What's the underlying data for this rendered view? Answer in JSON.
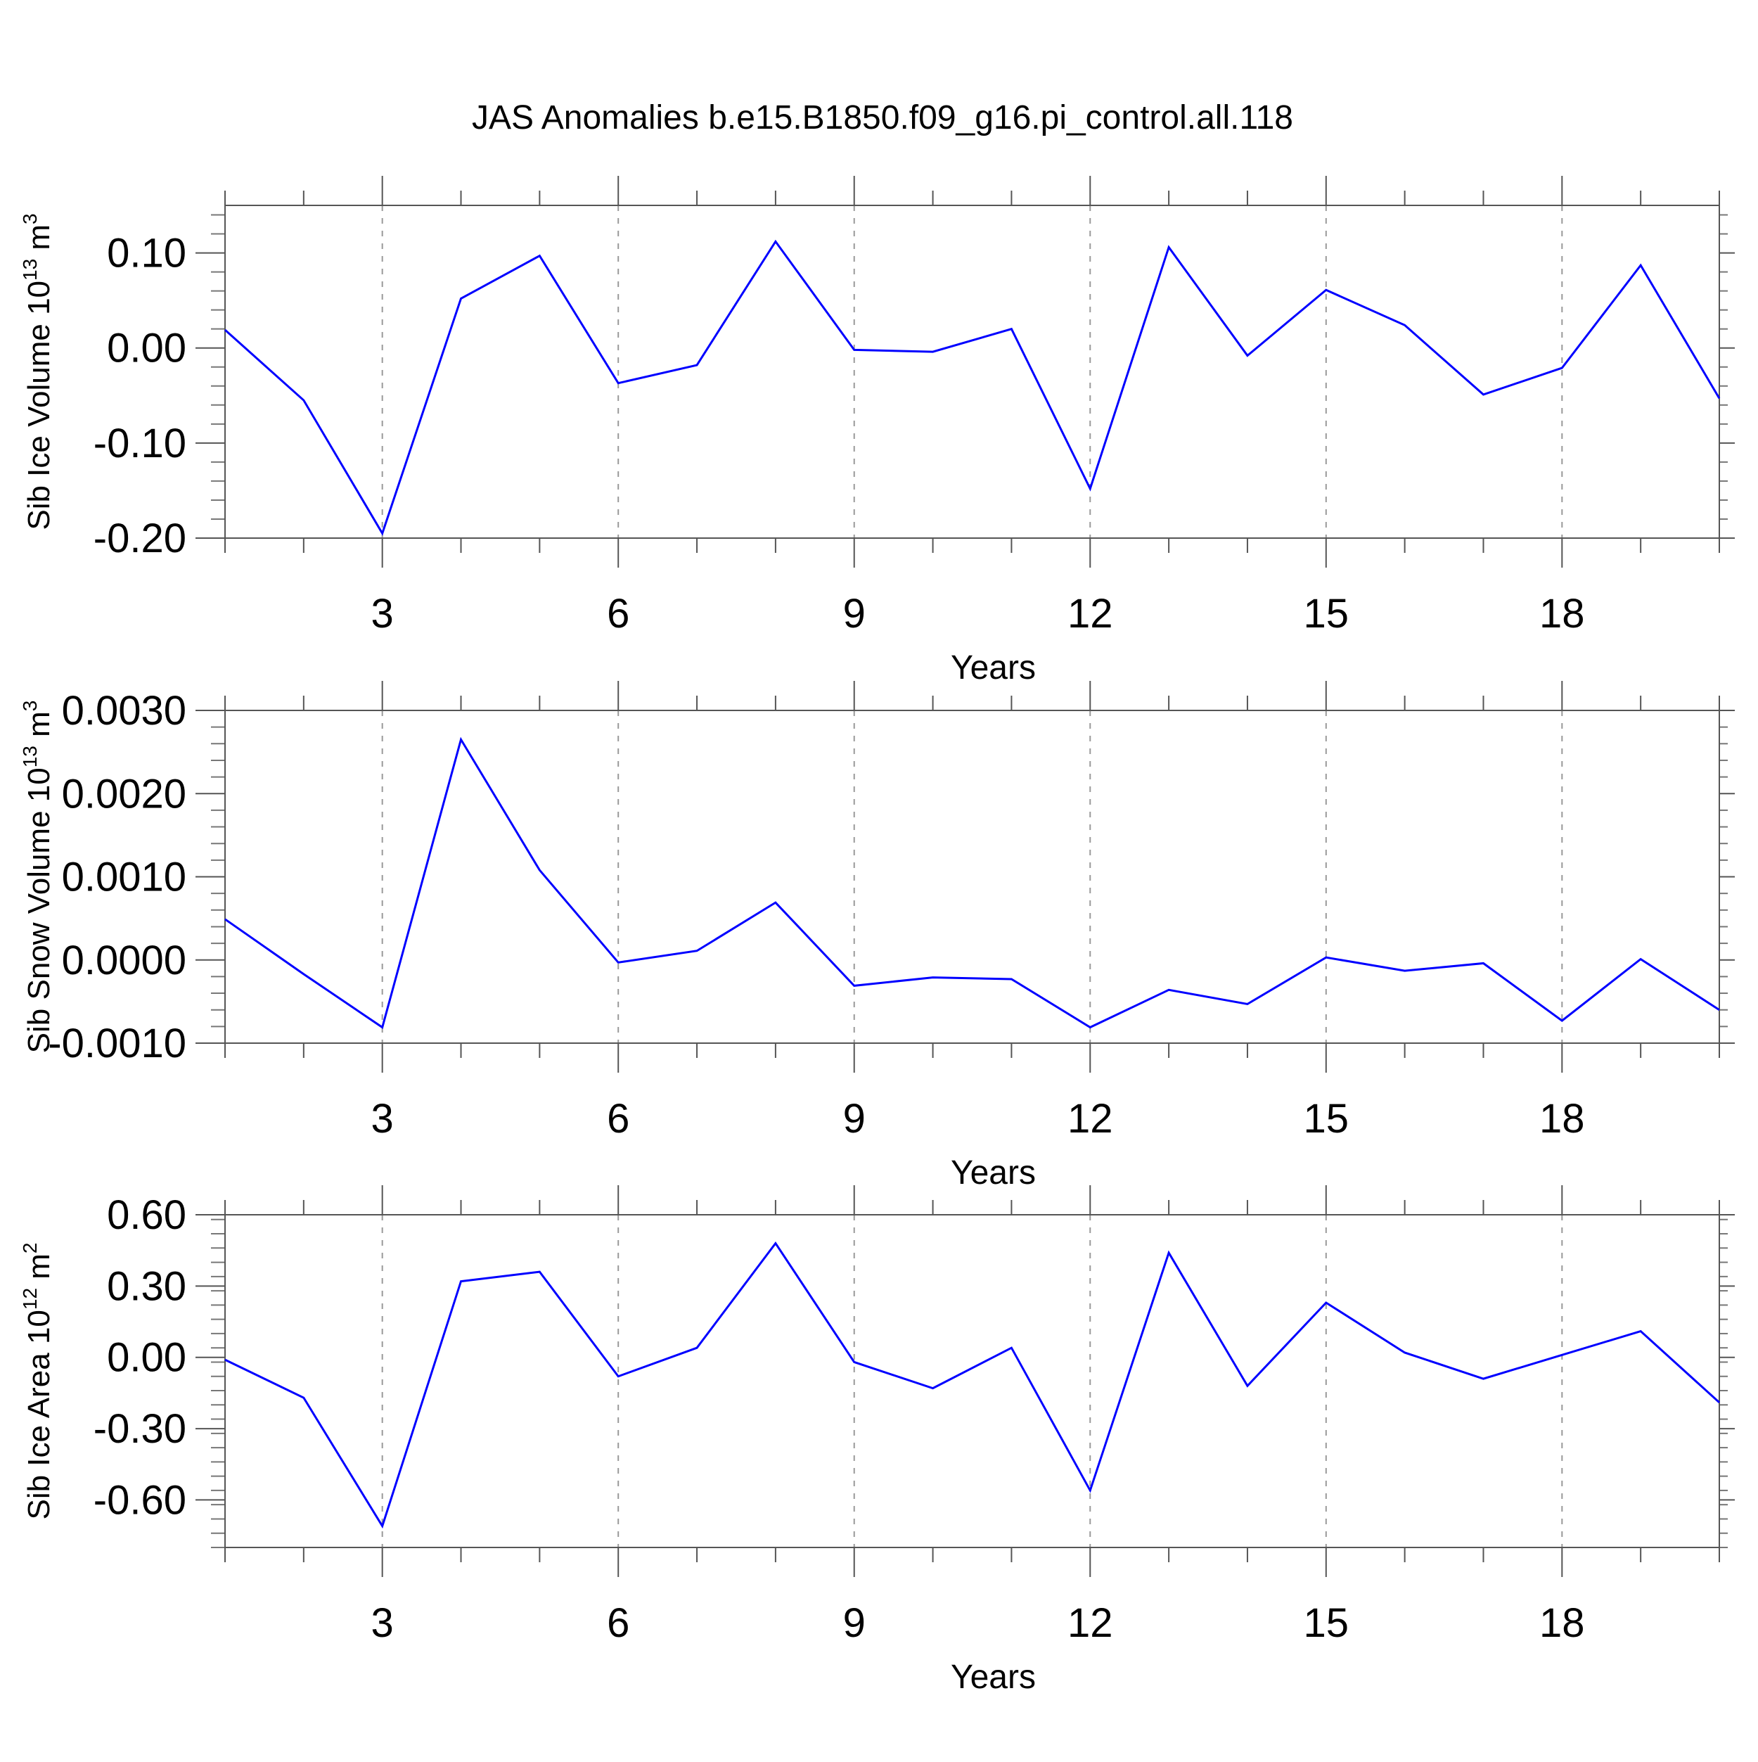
{
  "figure_title": "JAS Anomalies b.e15.B1850.f09_g16.pi_control.all.118",
  "line_color": "#0000ff",
  "chart_data": [
    {
      "type": "line",
      "title": "JAS Anomalies b.e15.B1850.f09_g16.pi_control.all.118",
      "xlabel": "Years",
      "ylabel": "Sib Ice Volume 10",
      "ylabel_sup": "13",
      "ylabel_unit": " m",
      "ylabel_unit_sup": "3",
      "xlim": [
        1,
        20
      ],
      "ylim": [
        -0.2,
        0.15
      ],
      "xticks": [
        3,
        6,
        9,
        12,
        15,
        18
      ],
      "yticks": [
        -0.2,
        -0.1,
        0.0,
        0.1
      ],
      "ytick_labels": [
        "-0.20",
        "-0.10",
        "0.00",
        "0.10"
      ],
      "grid": "x-dashed",
      "x": [
        1,
        2,
        3,
        4,
        5,
        6,
        7,
        8,
        9,
        10,
        11,
        12,
        13,
        14,
        15,
        16,
        17,
        18,
        19,
        20
      ],
      "values": [
        0.019,
        -0.055,
        -0.195,
        0.052,
        0.097,
        -0.037,
        -0.018,
        0.112,
        -0.002,
        -0.004,
        0.02,
        -0.148,
        0.106,
        -0.008,
        0.061,
        0.024,
        -0.049,
        -0.021,
        0.087,
        -0.053
      ]
    },
    {
      "type": "line",
      "xlabel": "Years",
      "ylabel": "Sib Snow Volume 10",
      "ylabel_sup": "13",
      "ylabel_unit": " m",
      "ylabel_unit_sup": "3",
      "xlim": [
        1,
        20
      ],
      "ylim": [
        -0.001,
        0.003
      ],
      "xticks": [
        3,
        6,
        9,
        12,
        15,
        18
      ],
      "yticks": [
        -0.001,
        0.0,
        0.001,
        0.002,
        0.003
      ],
      "ytick_labels": [
        "-0.0010",
        "0.0000",
        "0.0010",
        "0.0020",
        "0.0030"
      ],
      "grid": "x-dashed",
      "x": [
        1,
        2,
        3,
        4,
        5,
        6,
        7,
        8,
        9,
        10,
        11,
        12,
        13,
        14,
        15,
        16,
        17,
        18,
        19,
        20
      ],
      "values": [
        0.00049,
        -0.00017,
        -0.00081,
        0.00265,
        0.00108,
        -3e-05,
        0.00011,
        0.00069,
        -0.00031,
        -0.00021,
        -0.00023,
        -0.00081,
        -0.00036,
        -0.00053,
        3e-05,
        -0.00013,
        -4e-05,
        -0.00073,
        1e-05,
        -0.0006
      ]
    },
    {
      "type": "line",
      "xlabel": "Years",
      "ylabel": "Sib Ice Area 10",
      "ylabel_sup": "12",
      "ylabel_unit": " m",
      "ylabel_unit_sup": "2",
      "xlim": [
        1,
        20
      ],
      "ylim": [
        -0.8,
        0.6
      ],
      "xticks": [
        3,
        6,
        9,
        12,
        15,
        18
      ],
      "yticks": [
        -0.6,
        -0.3,
        0.0,
        0.3,
        0.6
      ],
      "ytick_labels": [
        "-0.60",
        "-0.30",
        "0.00",
        "0.30",
        "0.60"
      ],
      "grid": "x-dashed",
      "x": [
        1,
        2,
        3,
        4,
        5,
        6,
        7,
        8,
        9,
        10,
        11,
        12,
        13,
        14,
        15,
        16,
        17,
        18,
        19,
        20
      ],
      "values": [
        -0.01,
        -0.17,
        -0.71,
        0.32,
        0.36,
        -0.08,
        0.04,
        0.48,
        -0.02,
        -0.13,
        0.04,
        -0.56,
        0.44,
        -0.12,
        0.23,
        0.02,
        -0.09,
        0.01,
        0.11,
        -0.19
      ]
    }
  ]
}
